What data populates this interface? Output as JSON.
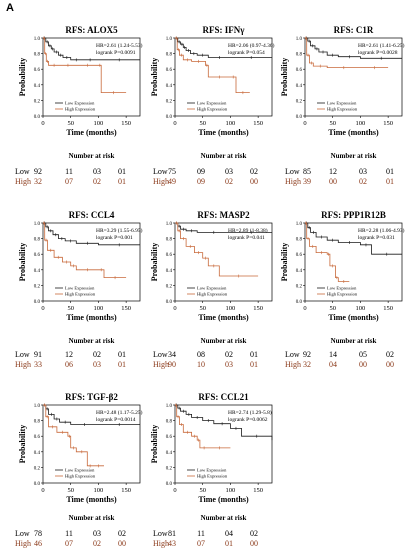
{
  "figure": {
    "panel_label": "A",
    "number_at_risk_label": "Number at risk",
    "risk_low_label": "Low",
    "risk_high_label": "High",
    "colors": {
      "low": "#1a1a1a",
      "high": "#c8693a",
      "risk_high_text": "#8b3a1a"
    }
  },
  "chart_data": [
    {
      "type": "line",
      "title": "RFS: ALOX5",
      "xlabel": "Time (months)",
      "ylabel": "Probability",
      "xlim": [
        0,
        175
      ],
      "ylim": [
        0,
        1
      ],
      "xticks": [
        0,
        50,
        100,
        150
      ],
      "yticks": [
        0.0,
        0.2,
        0.4,
        0.6,
        0.8,
        1.0
      ],
      "stats": [
        "HR=2.61 (1.24-5.53)",
        "logrank P=0.0091"
      ],
      "legend": [
        "Low Expression",
        "High Expression"
      ],
      "series": [
        {
          "name": "Low Expression",
          "x": [
            0,
            5,
            10,
            15,
            20,
            28,
            36,
            50,
            70,
            100,
            175
          ],
          "y": [
            1.0,
            0.95,
            0.9,
            0.86,
            0.82,
            0.78,
            0.75,
            0.72,
            0.72,
            0.72,
            0.72
          ]
        },
        {
          "name": "High Expression",
          "x": [
            0,
            3,
            6,
            10,
            30,
            60,
            100,
            105,
            150
          ],
          "y": [
            1.0,
            0.8,
            0.7,
            0.65,
            0.65,
            0.65,
            0.65,
            0.3,
            0.3
          ]
        }
      ],
      "risk": {
        "low": [
          "92",
          "11",
          "03",
          "01"
        ],
        "high": [
          "32",
          "07",
          "02",
          "01"
        ]
      }
    },
    {
      "type": "line",
      "title": "RFS: IFNγ",
      "xlabel": "Time (months)",
      "ylabel": "Probability",
      "xlim": [
        0,
        175
      ],
      "ylim": [
        0,
        1
      ],
      "xticks": [
        0,
        50,
        100,
        150
      ],
      "yticks": [
        0.0,
        0.2,
        0.4,
        0.6,
        0.8,
        1.0
      ],
      "stats": [
        "HR=2.06 (0.97-4.36)",
        "logrank P=0.054"
      ],
      "legend": [
        "Low Expression",
        "High Expression"
      ],
      "series": [
        {
          "name": "Low Expression",
          "x": [
            0,
            5,
            10,
            15,
            20,
            28,
            40,
            60,
            100,
            175
          ],
          "y": [
            1.0,
            0.95,
            0.92,
            0.88,
            0.84,
            0.8,
            0.78,
            0.75,
            0.75,
            0.75
          ]
        },
        {
          "name": "High Expression",
          "x": [
            0,
            4,
            8,
            15,
            30,
            55,
            60,
            100,
            110,
            135
          ],
          "y": [
            1.0,
            0.85,
            0.78,
            0.72,
            0.7,
            0.65,
            0.5,
            0.5,
            0.3,
            0.3
          ]
        }
      ],
      "risk": {
        "low": [
          "75",
          "09",
          "03",
          "02"
        ],
        "high": [
          "49",
          "09",
          "02",
          "00"
        ]
      }
    },
    {
      "type": "line",
      "title": "RFS: C1R",
      "xlabel": "Time (months)",
      "ylabel": "Probability",
      "xlim": [
        0,
        175
      ],
      "ylim": [
        0,
        1
      ],
      "xticks": [
        0,
        50,
        100,
        150
      ],
      "yticks": [
        0.0,
        0.2,
        0.4,
        0.6,
        0.8,
        1.0
      ],
      "stats": [
        "HR=2.61 (1.41-6.25)",
        "logrank P=0.0028"
      ],
      "legend": [
        "Low Expression",
        "High Expression"
      ],
      "series": [
        {
          "name": "Low Expression",
          "x": [
            0,
            5,
            10,
            18,
            25,
            40,
            60,
            100,
            175
          ],
          "y": [
            1.0,
            0.96,
            0.9,
            0.86,
            0.82,
            0.78,
            0.76,
            0.74,
            0.74
          ]
        },
        {
          "name": "High Expression",
          "x": [
            0,
            3,
            8,
            15,
            40,
            100,
            150
          ],
          "y": [
            1.0,
            0.78,
            0.68,
            0.64,
            0.62,
            0.62,
            0.62
          ]
        }
      ],
      "risk": {
        "low": [
          "85",
          "12",
          "03",
          "01"
        ],
        "high": [
          "39",
          "00",
          "02",
          "01"
        ]
      }
    },
    {
      "type": "line",
      "title": "RFS: CCL4",
      "xlabel": "Time (months)",
      "ylabel": "Probability",
      "xlim": [
        0,
        175
      ],
      "ylim": [
        0,
        1
      ],
      "xticks": [
        0,
        50,
        100,
        150
      ],
      "yticks": [
        0.0,
        0.2,
        0.4,
        0.6,
        0.8,
        1.0
      ],
      "stats": [
        "HR=3.29 (1.55-6.95)",
        "logrank P=0.001"
      ],
      "legend": [
        "Low Expression",
        "High Expression"
      ],
      "series": [
        {
          "name": "Low Expression",
          "x": [
            0,
            5,
            10,
            18,
            28,
            40,
            60,
            100,
            175
          ],
          "y": [
            1.0,
            0.95,
            0.9,
            0.85,
            0.8,
            0.77,
            0.74,
            0.72,
            0.72
          ]
        },
        {
          "name": "High Expression",
          "x": [
            0,
            3,
            8,
            20,
            35,
            50,
            60,
            100,
            110,
            150
          ],
          "y": [
            1.0,
            0.78,
            0.65,
            0.56,
            0.5,
            0.45,
            0.4,
            0.4,
            0.3,
            0.3
          ]
        }
      ],
      "risk": {
        "low": [
          "91",
          "12",
          "02",
          "01"
        ],
        "high": [
          "33",
          "06",
          "03",
          "01"
        ]
      }
    },
    {
      "type": "line",
      "title": "RFS: MASP2",
      "xlabel": "Time (months)",
      "ylabel": "Probability",
      "xlim": [
        0,
        175
      ],
      "ylim": [
        0,
        1
      ],
      "xticks": [
        0,
        50,
        100,
        150
      ],
      "yticks": [
        0.0,
        0.2,
        0.4,
        0.6,
        0.8,
        1.0
      ],
      "stats": [
        "HR=2.89 (1-8.38)",
        "logrank P=0.041"
      ],
      "legend": [
        "Low Expression",
        "High Expression"
      ],
      "series": [
        {
          "name": "Low Expression",
          "x": [
            0,
            5,
            10,
            20,
            40,
            100,
            175
          ],
          "y": [
            1.0,
            0.96,
            0.92,
            0.9,
            0.88,
            0.88,
            0.88
          ]
        },
        {
          "name": "High Expression",
          "x": [
            0,
            5,
            10,
            20,
            35,
            50,
            60,
            80,
            150
          ],
          "y": [
            1.0,
            0.9,
            0.8,
            0.7,
            0.62,
            0.55,
            0.45,
            0.32,
            0.32
          ]
        }
      ],
      "risk": {
        "low": [
          "34",
          "08",
          "02",
          "01"
        ],
        "high": [
          "90",
          "10",
          "03",
          "01"
        ]
      }
    },
    {
      "type": "line",
      "title": "RFS: PPP1R12B",
      "xlabel": "Time (months)",
      "ylabel": "Probability",
      "xlim": [
        0,
        175
      ],
      "ylim": [
        0,
        1
      ],
      "xticks": [
        0,
        50,
        100,
        150
      ],
      "yticks": [
        0.0,
        0.2,
        0.4,
        0.6,
        0.8,
        1.0
      ],
      "stats": [
        "HR=2.28 (1.06-4.93)",
        "logrank P=0.031"
      ],
      "legend": [
        "Low Expression",
        "High Expression"
      ],
      "series": [
        {
          "name": "Low Expression",
          "x": [
            0,
            5,
            10,
            20,
            40,
            60,
            100,
            120,
            175
          ],
          "y": [
            1.0,
            0.94,
            0.88,
            0.82,
            0.78,
            0.75,
            0.72,
            0.6,
            0.6
          ]
        },
        {
          "name": "High Expression",
          "x": [
            0,
            3,
            8,
            20,
            40,
            45,
            55,
            60,
            80
          ],
          "y": [
            1.0,
            0.8,
            0.7,
            0.62,
            0.6,
            0.45,
            0.3,
            0.25,
            0.25
          ]
        }
      ],
      "risk": {
        "low": [
          "92",
          "14",
          "05",
          "02"
        ],
        "high": [
          "32",
          "04",
          "00",
          "00"
        ]
      }
    },
    {
      "type": "line",
      "title": "RFS: TGF-β2",
      "xlabel": "Time (months)",
      "ylabel": "Probability",
      "xlim": [
        0,
        175
      ],
      "ylim": [
        0,
        1
      ],
      "xticks": [
        0,
        50,
        100,
        150
      ],
      "yticks": [
        0.0,
        0.2,
        0.4,
        0.6,
        0.8,
        1.0
      ],
      "stats": [
        "HR=2.48 (1.17-5.25)",
        "logrank P=0.0014"
      ],
      "legend": [
        "Low Expression",
        "High Expression"
      ],
      "series": [
        {
          "name": "Low Expression",
          "x": [
            0,
            5,
            10,
            20,
            30,
            50,
            100,
            175
          ],
          "y": [
            1.0,
            0.95,
            0.88,
            0.82,
            0.78,
            0.75,
            0.75,
            0.75
          ]
        },
        {
          "name": "High Expression",
          "x": [
            0,
            5,
            10,
            25,
            45,
            50,
            60,
            80,
            90,
            110
          ],
          "y": [
            1.0,
            0.85,
            0.72,
            0.65,
            0.6,
            0.45,
            0.4,
            0.22,
            0.22,
            0.22
          ]
        }
      ],
      "risk": {
        "low": [
          "78",
          "11",
          "03",
          "02"
        ],
        "high": [
          "46",
          "07",
          "02",
          "00"
        ]
      }
    },
    {
      "type": "line",
      "title": "RFS: CCL21",
      "xlabel": "Time (months)",
      "ylabel": "Probability",
      "xlim": [
        0,
        175
      ],
      "ylim": [
        0,
        1
      ],
      "xticks": [
        0,
        50,
        100,
        150
      ],
      "yticks": [
        0.0,
        0.2,
        0.4,
        0.6,
        0.8,
        1.0
      ],
      "stats": [
        "HR=2.74 (1.29-5.8)",
        "logrank P=0.0062"
      ],
      "legend": [
        "Low Expression",
        "High Expression"
      ],
      "series": [
        {
          "name": "Low Expression",
          "x": [
            0,
            5,
            10,
            20,
            30,
            50,
            70,
            100,
            120,
            175
          ],
          "y": [
            1.0,
            0.96,
            0.92,
            0.88,
            0.84,
            0.8,
            0.76,
            0.7,
            0.6,
            0.55
          ]
        },
        {
          "name": "High Expression",
          "x": [
            0,
            3,
            8,
            15,
            30,
            40,
            45,
            60,
            100
          ],
          "y": [
            1.0,
            0.85,
            0.75,
            0.65,
            0.6,
            0.55,
            0.45,
            0.45,
            0.45
          ]
        }
      ],
      "risk": {
        "low": [
          "81",
          "11",
          "04",
          "02"
        ],
        "high": [
          "43",
          "07",
          "01",
          "00"
        ]
      }
    }
  ]
}
